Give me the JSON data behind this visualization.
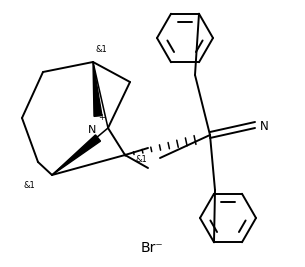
{
  "bg_color": "#ffffff",
  "line_color": "#000000",
  "lw": 1.4,
  "br_label": "Br⁻",
  "br_fontsize": 10
}
